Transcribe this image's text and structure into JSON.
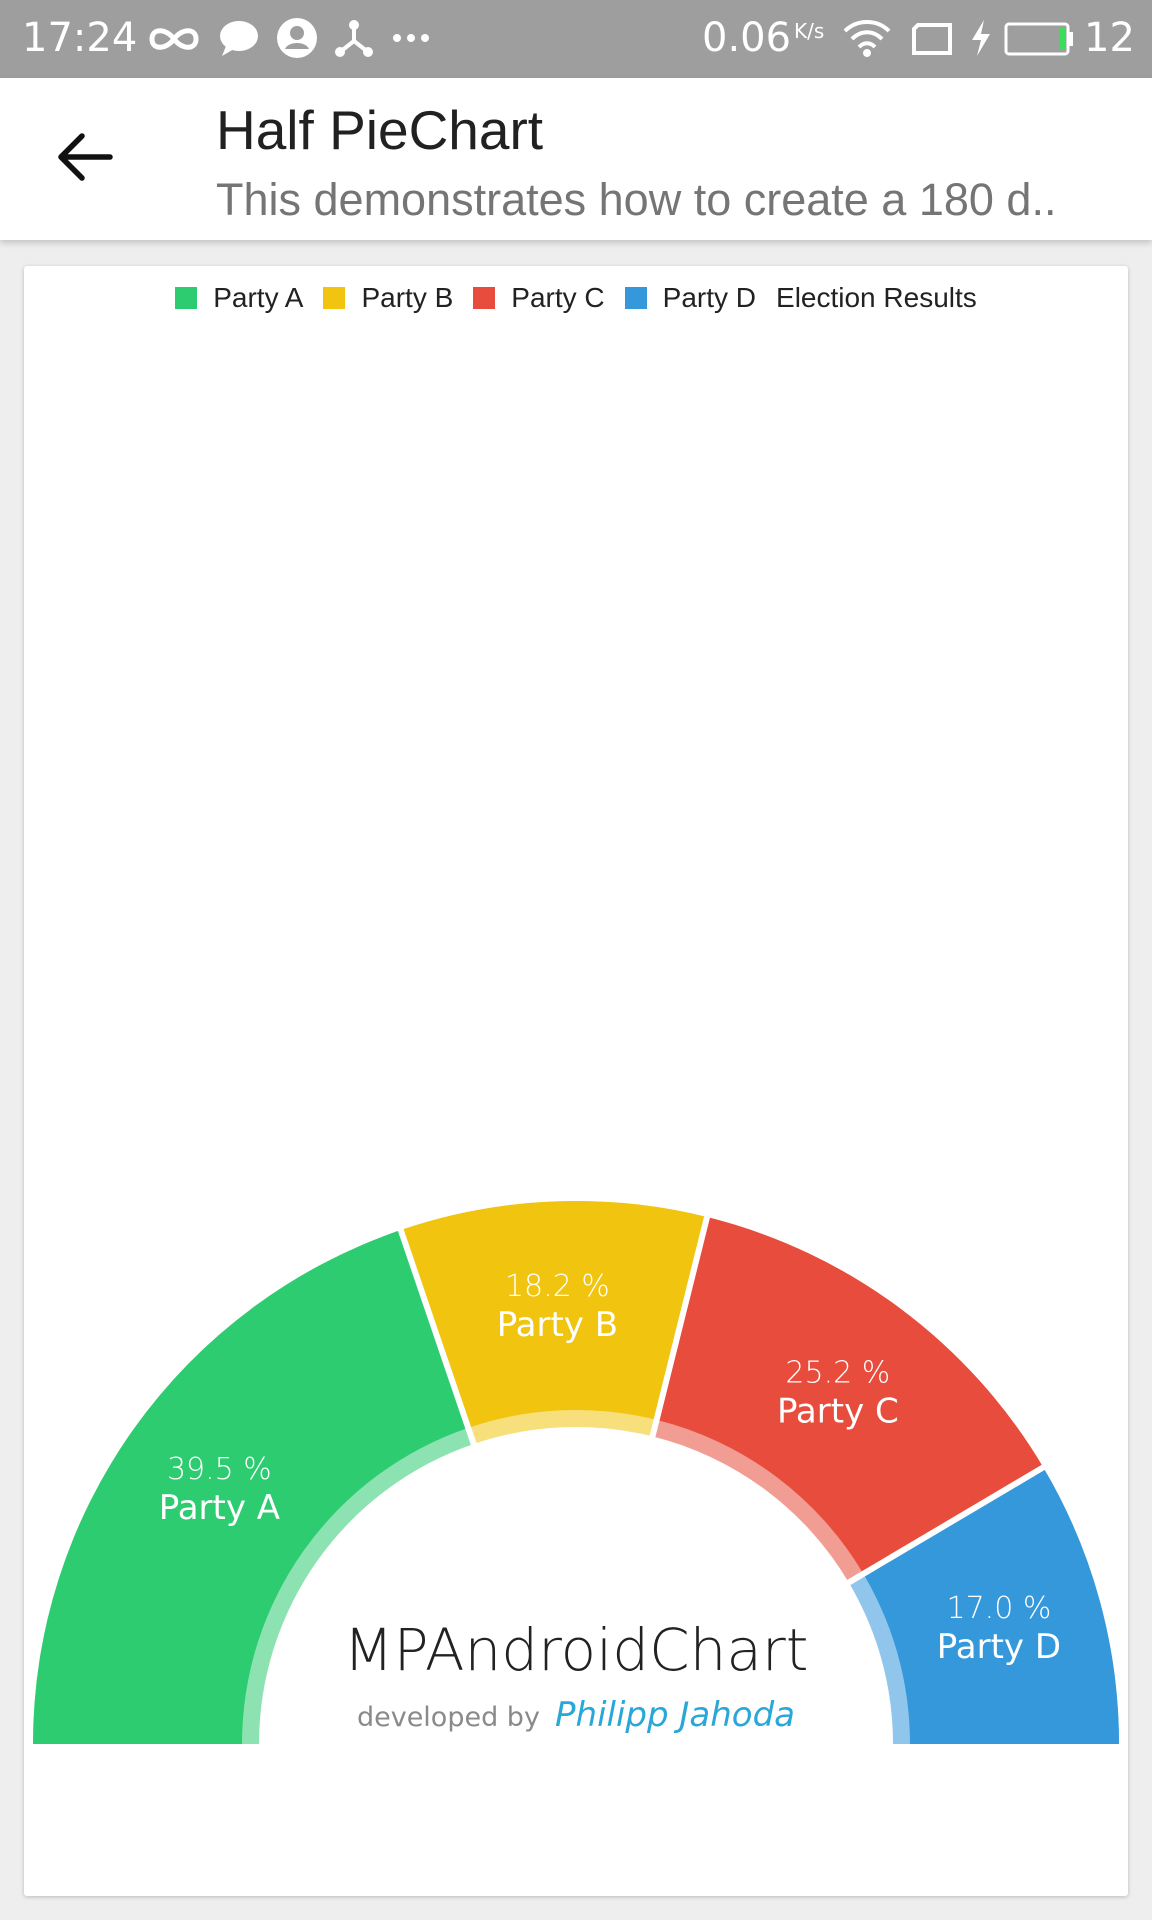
{
  "status_bar": {
    "time": "17:24",
    "net_speed": "0.06",
    "net_unit": "K/s",
    "battery_level": "12",
    "icons": [
      "infinity-icon",
      "chat-icon",
      "account-icon",
      "share-icon",
      "more-dots-icon",
      "wifi-icon",
      "screen-icon",
      "charging-icon",
      "battery-icon"
    ]
  },
  "app_bar": {
    "title": "Half PieChart",
    "subtitle": "This demonstrates how to create a 180 d.."
  },
  "colors": {
    "party_a": "#2ecc71",
    "party_b": "#f1c40f",
    "party_c": "#e74c3c",
    "party_d": "#3498db",
    "brand": "#29a7d8"
  },
  "chart_data": {
    "type": "pie",
    "variant": "half-donut",
    "title": "Election Results",
    "categories": [
      "Party A",
      "Party B",
      "Party C",
      "Party D"
    ],
    "values": [
      39.5,
      18.2,
      25.2,
      17.0
    ],
    "value_labels": [
      "39.5 %",
      "18.2 %",
      "25.2 %",
      "17.0 %"
    ],
    "colors": [
      "#2ecc71",
      "#f1c40f",
      "#e74c3c",
      "#3498db"
    ],
    "legend": [
      "Party A",
      "Party B",
      "Party C",
      "Party D",
      "Election Results"
    ],
    "legend_placement": "top-center",
    "center_text": {
      "main": "MPAndroidChart",
      "prefix": "developed by",
      "author": "Philipp Jahoda"
    }
  }
}
